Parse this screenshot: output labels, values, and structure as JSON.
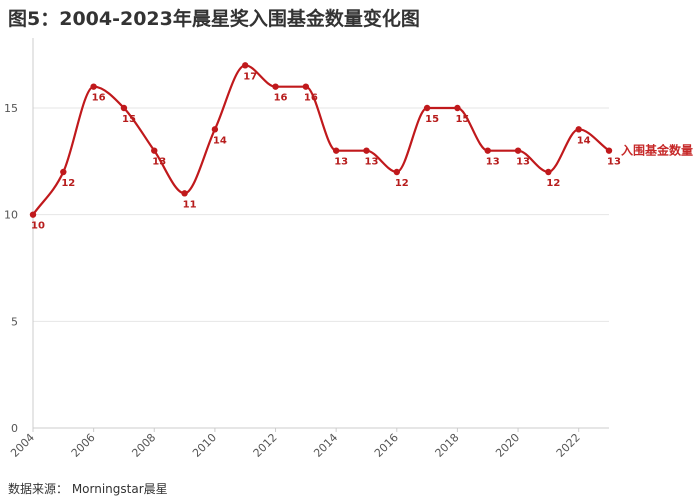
{
  "title": "图5：2004-2023年晨星奖入围基金数量变化图",
  "source": "数据来源： Morningstar晨星",
  "colors": {
    "line": "#c0191c",
    "grid": "#e6e6e6",
    "axis": "#cccccc"
  },
  "chart_data": {
    "type": "line",
    "title": "图5：2004-2023年晨星奖入围基金数量变化图",
    "xlabel": "",
    "ylabel": "",
    "x": [
      2004,
      2005,
      2006,
      2007,
      2008,
      2009,
      2010,
      2011,
      2012,
      2013,
      2014,
      2015,
      2016,
      2017,
      2018,
      2019,
      2020,
      2021,
      2022,
      2023
    ],
    "x_ticks": [
      "2004",
      "2006",
      "2008",
      "2010",
      "2012",
      "2014",
      "2016",
      "2018",
      "2020",
      "2022"
    ],
    "y_ticks": [
      "0",
      "5",
      "10",
      "15"
    ],
    "ylim": [
      0,
      18
    ],
    "series": [
      {
        "name": "入围基金数量",
        "values": [
          10,
          12,
          16,
          15,
          13,
          11,
          14,
          17,
          16,
          16,
          13,
          13,
          12,
          15,
          15,
          13,
          13,
          12,
          14,
          13
        ]
      }
    ],
    "grid": true,
    "legend": "series label at line end (right)"
  }
}
